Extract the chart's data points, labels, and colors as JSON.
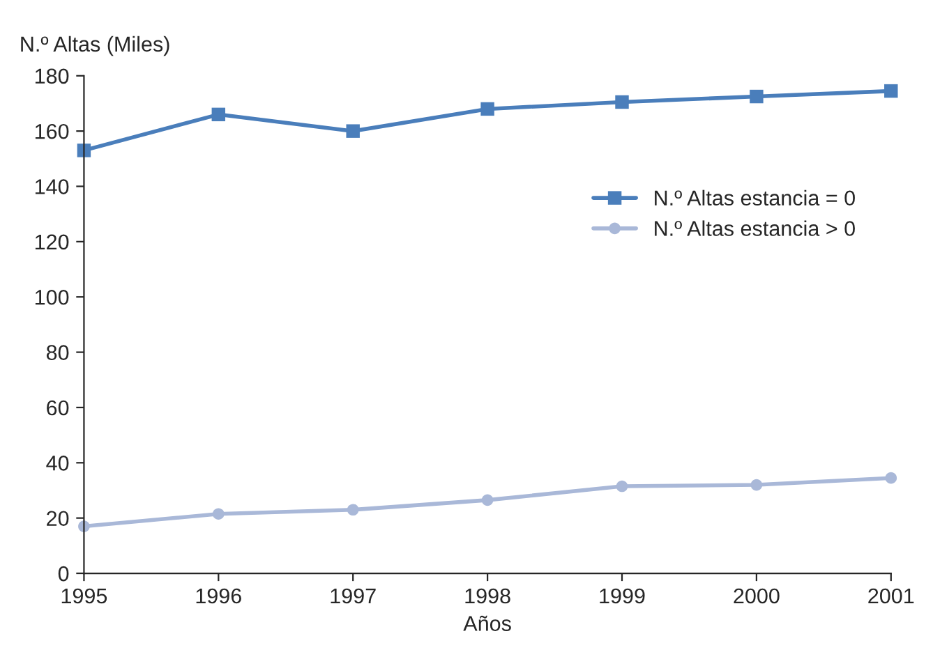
{
  "chart_data": {
    "type": "line",
    "ylabel": "N.º Altas (Miles)",
    "xlabel": "Años",
    "x": [
      1995,
      1996,
      1997,
      1998,
      1999,
      2000,
      2001
    ],
    "series": [
      {
        "name": "N.º Altas estancia = 0",
        "color": "#4a7ebb",
        "marker": "square",
        "values": [
          153,
          166,
          160,
          168,
          170.5,
          172.5,
          174.5
        ]
      },
      {
        "name": "N.º Altas estancia > 0",
        "color": "#a9b8d8",
        "marker": "circle",
        "values": [
          17,
          21.5,
          23,
          26.5,
          31.5,
          32,
          34.5
        ]
      }
    ],
    "xlim": [
      1995,
      2001
    ],
    "xticks": [
      1995,
      1996,
      1997,
      1998,
      1999,
      2000,
      2001
    ],
    "ylim": [
      0,
      180
    ],
    "yticks": [
      0,
      20,
      40,
      60,
      80,
      100,
      120,
      140,
      160,
      180
    ],
    "grid": false,
    "legend": "right",
    "line_style": "solid"
  }
}
